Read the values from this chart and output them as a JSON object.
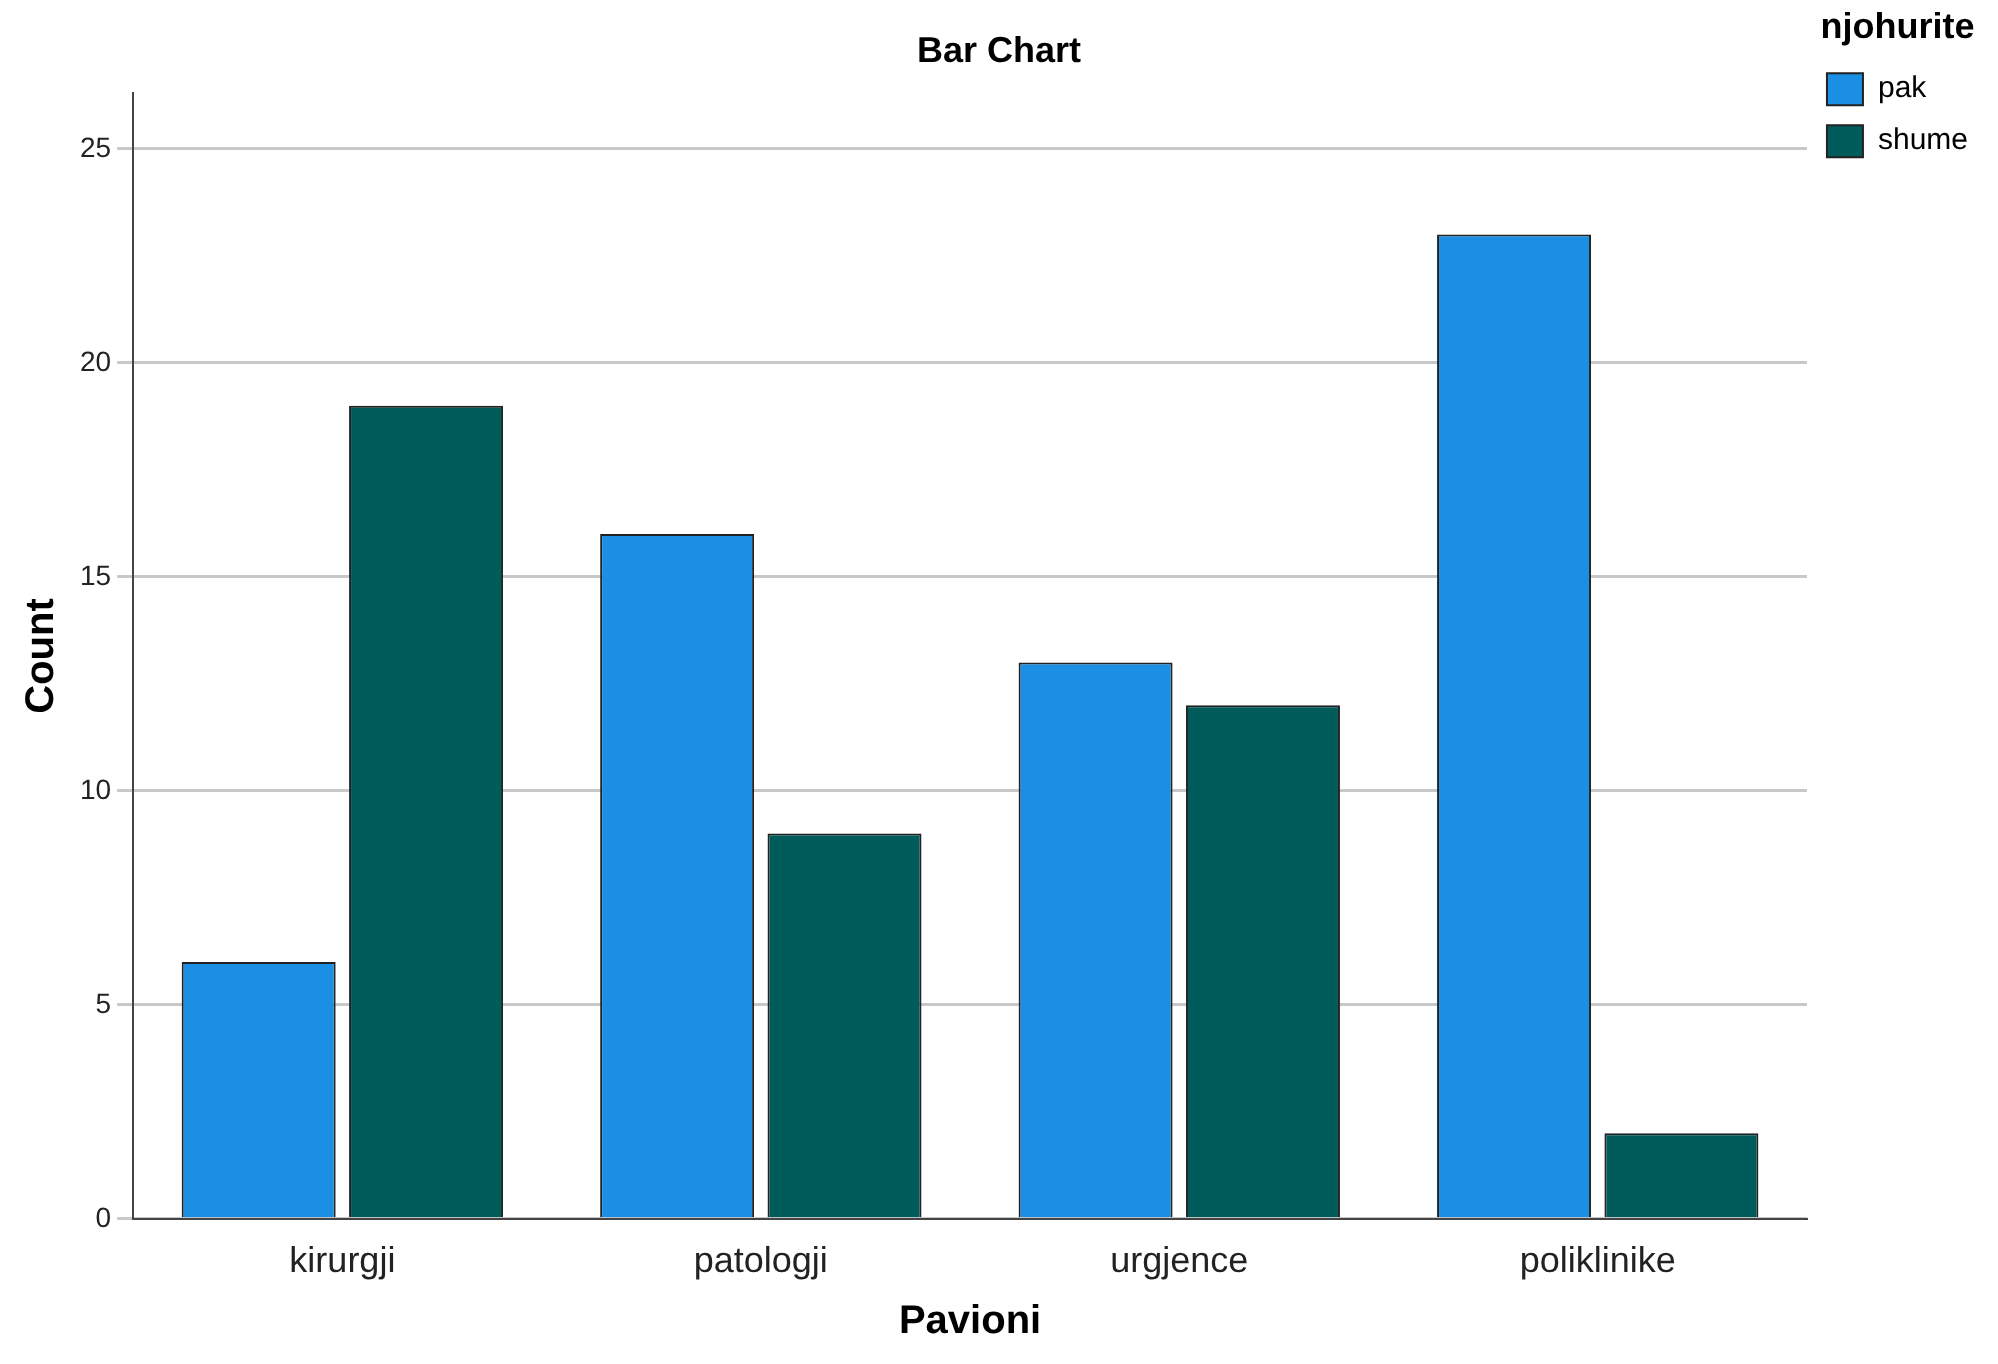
{
  "chart_data": {
    "type": "bar",
    "title": "Bar Chart",
    "xlabel": "Pavioni",
    "ylabel": "Count",
    "legend_title": "njohurite",
    "categories": [
      "kirurgji",
      "patologji",
      "urgjence",
      "poliklinike"
    ],
    "series": [
      {
        "name": "pak",
        "color": "#1a8fe3",
        "values": [
          6,
          16,
          13,
          23
        ]
      },
      {
        "name": "shume",
        "color": "#005c5a",
        "values": [
          19,
          9,
          12,
          2
        ]
      }
    ],
    "ylim": [
      0,
      26.3
    ],
    "yticks": [
      0,
      5,
      10,
      15,
      20,
      25
    ],
    "grid": "y",
    "legend": "top right"
  }
}
